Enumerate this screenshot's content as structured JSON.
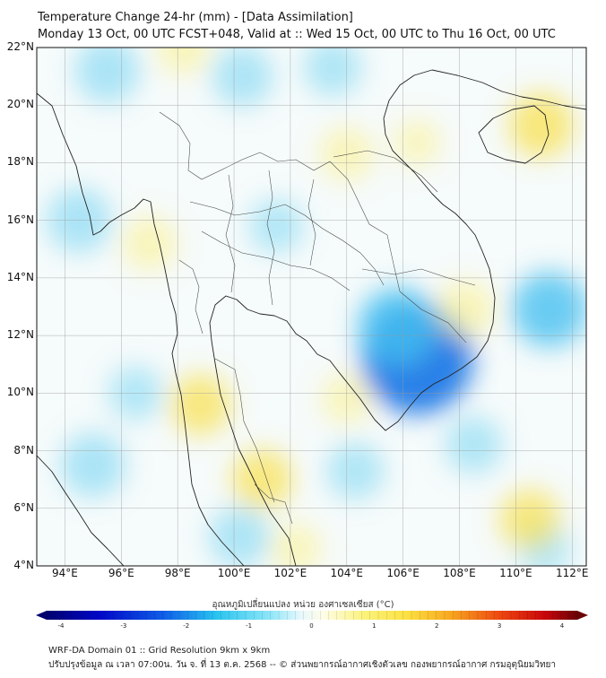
{
  "title_line1": "Temperature Change 24-hr (mm) - [Data Assimilation]",
  "title_line2": "Monday 13 Oct, 00 UTC FCST+048, Valid at :: Wed 15 Oct, 00 UTC to Thu 16 Oct, 00 UTC",
  "lat_labels": [
    "22°N",
    "20°N",
    "18°N",
    "16°N",
    "14°N",
    "12°N",
    "10°N",
    "8°N",
    "6°N",
    "4°N"
  ],
  "lon_labels": [
    "94°E",
    "96°E",
    "98°E",
    "100°E",
    "102°E",
    "104°E",
    "106°E",
    "108°E",
    "110°E",
    "112°E"
  ],
  "colorbar": {
    "title": "อุณหภูมิเปลี่ยนแปลง หน่วย องศาเซลเซียส (°C)",
    "min": -4,
    "max": 4,
    "ticks": [
      "-4",
      "-3",
      "-2",
      "-1",
      "0",
      "1",
      "2",
      "3",
      "4"
    ]
  },
  "footer_line1": "WRF-DA Domain 01 :: Grid Resolution 9km x 9km",
  "footer_line2": "ปรับปรุงข้อมูล ณ เวลา 07:00น. วัน จ. ที่ 13 ต.ค. 2568 -- © ส่วนพยากรณ์อากาศเชิงตัวเลข กองพยากรณ์อากาศ กรมอุตุนิยมวิทยา",
  "field_anomalies": [
    {
      "lon": 106.5,
      "lat": 11.2,
      "value": -2.2
    },
    {
      "lon": 105.8,
      "lat": 12.3,
      "value": -1.3
    },
    {
      "lon": 111.2,
      "lat": 12.9,
      "value": -1.2
    },
    {
      "lon": 95.5,
      "lat": 21.2,
      "value": -0.9
    },
    {
      "lon": 100.3,
      "lat": 21.0,
      "value": -0.8
    },
    {
      "lon": 103.5,
      "lat": 21.3,
      "value": -0.7
    },
    {
      "lon": 94.5,
      "lat": 16.0,
      "value": -0.9
    },
    {
      "lon": 101.5,
      "lat": 15.8,
      "value": -0.6
    },
    {
      "lon": 95.0,
      "lat": 7.5,
      "value": -0.9
    },
    {
      "lon": 100.2,
      "lat": 5.0,
      "value": -0.8
    },
    {
      "lon": 104.3,
      "lat": 7.3,
      "value": -0.7
    },
    {
      "lon": 108.5,
      "lat": 8.2,
      "value": -0.7
    },
    {
      "lon": 96.5,
      "lat": 10.0,
      "value": -0.6
    },
    {
      "lon": 111.0,
      "lat": 4.6,
      "value": -0.6
    },
    {
      "lon": 110.9,
      "lat": 19.3,
      "value": 0.9
    },
    {
      "lon": 98.8,
      "lat": 9.6,
      "value": 0.8
    },
    {
      "lon": 101.0,
      "lat": 7.0,
      "value": 0.8
    },
    {
      "lon": 110.5,
      "lat": 5.6,
      "value": 0.8
    },
    {
      "lon": 108.2,
      "lat": 12.9,
      "value": 0.7
    },
    {
      "lon": 104.0,
      "lat": 18.3,
      "value": 0.6
    },
    {
      "lon": 97.0,
      "lat": 15.2,
      "value": 0.6
    },
    {
      "lon": 104.0,
      "lat": 9.8,
      "value": 0.5
    },
    {
      "lon": 102.2,
      "lat": 4.6,
      "value": 0.5
    },
    {
      "lon": 106.5,
      "lat": 18.7,
      "value": 0.4
    },
    {
      "lon": 98.2,
      "lat": 22.0,
      "value": 0.6
    }
  ]
}
